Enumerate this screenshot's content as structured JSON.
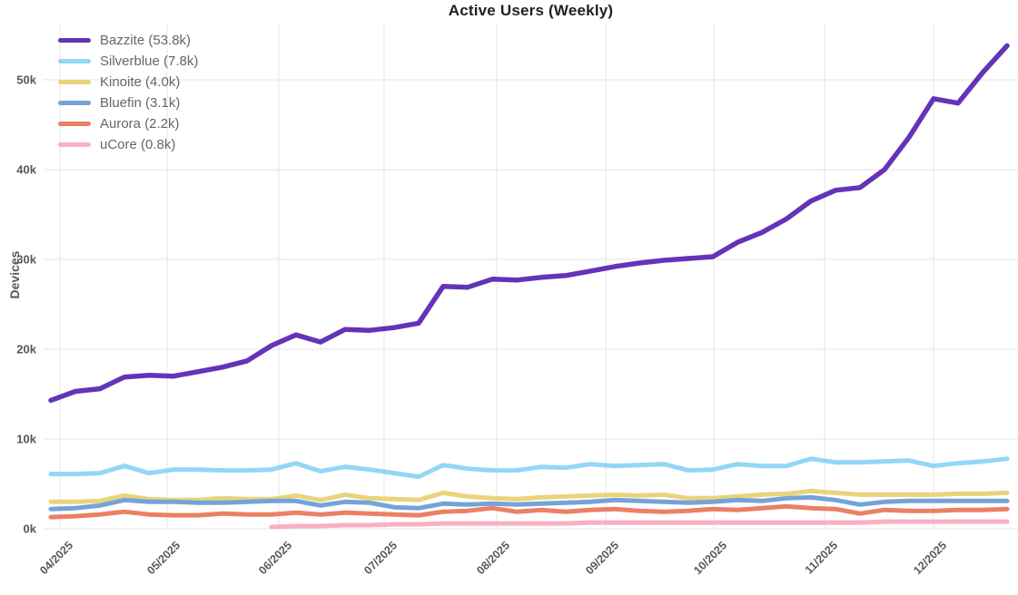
{
  "chart_data": {
    "type": "line",
    "title": "Active Users (Weekly)",
    "ylabel": "Devices",
    "xlabel": "",
    "x_unit": "week",
    "grid": true,
    "legend_position": "top-left",
    "x_tick_labels": [
      "04/2025",
      "05/2025",
      "06/2025",
      "07/2025",
      "08/2025",
      "09/2025",
      "10/2025",
      "11/2025",
      "12/2025"
    ],
    "y_tick_labels": [
      "0k",
      "10k",
      "20k",
      "30k",
      "40k",
      "50k"
    ],
    "y_ticks_thousands": [
      0,
      10,
      20,
      30,
      40,
      50
    ],
    "ylim_thousands": [
      0,
      56
    ],
    "series": [
      {
        "name": "Bazzite",
        "legend_label": "Bazzite (53.8k)",
        "current_value_label": "53.8k",
        "color": "#6334B7",
        "line_width": 5.5,
        "values_thousands": [
          14.3,
          15.3,
          15.6,
          16.9,
          17.1,
          17.0,
          17.5,
          18.0,
          18.7,
          20.4,
          21.6,
          20.8,
          22.2,
          22.1,
          22.4,
          22.9,
          27.0,
          26.9,
          27.8,
          27.7,
          28.0,
          28.2,
          28.7,
          29.2,
          29.6,
          29.9,
          30.1,
          30.3,
          31.9,
          33.0,
          34.5,
          36.5,
          37.7,
          38.0,
          40.0,
          43.6,
          47.9,
          47.4,
          50.8,
          53.8
        ]
      },
      {
        "name": "Silverblue",
        "legend_label": "Silverblue (7.8k)",
        "current_value_label": "7.8k",
        "color": "#92D6F8",
        "line_width": 5,
        "values_thousands": [
          6.1,
          6.1,
          6.2,
          7.0,
          6.2,
          6.6,
          6.6,
          6.5,
          6.5,
          6.6,
          7.3,
          6.4,
          6.9,
          6.6,
          6.2,
          5.8,
          7.1,
          6.7,
          6.5,
          6.5,
          6.9,
          6.8,
          7.2,
          7.0,
          7.1,
          7.2,
          6.5,
          6.6,
          7.2,
          7.0,
          7.0,
          7.8,
          7.4,
          7.4,
          7.5,
          7.6,
          7.0,
          7.3,
          7.5,
          7.8
        ]
      },
      {
        "name": "Kinoite",
        "legend_label": "Kinoite (4.0k)",
        "current_value_label": "4.0k",
        "color": "#E9D47C",
        "line_width": 5,
        "values_thousands": [
          3.0,
          3.0,
          3.1,
          3.7,
          3.3,
          3.2,
          3.2,
          3.4,
          3.3,
          3.3,
          3.7,
          3.2,
          3.8,
          3.4,
          3.3,
          3.2,
          4.0,
          3.6,
          3.4,
          3.3,
          3.5,
          3.6,
          3.7,
          3.8,
          3.7,
          3.8,
          3.4,
          3.4,
          3.6,
          3.8,
          3.9,
          4.2,
          4.0,
          3.8,
          3.8,
          3.8,
          3.8,
          3.9,
          3.9,
          4.0
        ]
      },
      {
        "name": "Bluefin",
        "legend_label": "Bluefin (3.1k)",
        "current_value_label": "3.1k",
        "color": "#74A3D8",
        "line_width": 5,
        "values_thousands": [
          2.2,
          2.3,
          2.6,
          3.2,
          3.0,
          3.0,
          2.9,
          2.9,
          3.0,
          3.1,
          3.1,
          2.6,
          3.0,
          2.9,
          2.4,
          2.3,
          2.8,
          2.7,
          2.8,
          2.7,
          2.8,
          2.9,
          3.0,
          3.2,
          3.1,
          3.0,
          2.9,
          3.0,
          3.2,
          3.1,
          3.4,
          3.5,
          3.2,
          2.7,
          3.0,
          3.1,
          3.1,
          3.1,
          3.1,
          3.1
        ]
      },
      {
        "name": "Aurora",
        "legend_label": "Aurora (2.2k)",
        "current_value_label": "2.2k",
        "color": "#EC8064",
        "line_width": 5,
        "values_thousands": [
          1.3,
          1.4,
          1.6,
          1.9,
          1.6,
          1.5,
          1.5,
          1.7,
          1.6,
          1.6,
          1.8,
          1.6,
          1.8,
          1.7,
          1.6,
          1.5,
          1.9,
          2.0,
          2.3,
          1.9,
          2.1,
          1.9,
          2.1,
          2.2,
          2.0,
          1.9,
          2.0,
          2.2,
          2.1,
          2.3,
          2.5,
          2.3,
          2.2,
          1.7,
          2.1,
          2.0,
          2.0,
          2.1,
          2.1,
          2.2
        ]
      },
      {
        "name": "uCore",
        "legend_label": "uCore (0.8k)",
        "current_value_label": "0.8k",
        "color": "#F9AFC4",
        "line_width": 5,
        "values_thousands": [
          null,
          null,
          null,
          null,
          null,
          null,
          null,
          null,
          null,
          0.2,
          0.3,
          0.3,
          0.4,
          0.4,
          0.5,
          0.5,
          0.6,
          0.6,
          0.6,
          0.6,
          0.6,
          0.6,
          0.7,
          0.7,
          0.7,
          0.7,
          0.7,
          0.7,
          0.7,
          0.7,
          0.7,
          0.7,
          0.7,
          0.7,
          0.8,
          0.8,
          0.8,
          0.8,
          0.8,
          0.8
        ]
      }
    ]
  }
}
